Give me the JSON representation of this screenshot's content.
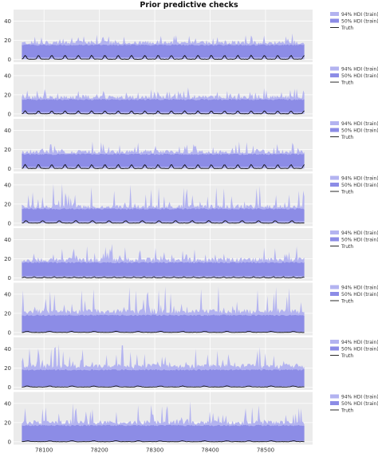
{
  "chart_data": {
    "type": "area",
    "title": "Prior predictive checks",
    "xlabel": "",
    "ylabel": "",
    "xlim": [
      78045,
      78585
    ],
    "x_range": [
      78060,
      78570
    ],
    "x_ticks": [
      78100,
      78200,
      78300,
      78400,
      78500
    ],
    "grid": true,
    "legend_placement": "right",
    "legend": [
      "94% HDI (train)",
      "50% HDI (train)",
      "Truth"
    ],
    "colors": {
      "hdi94": "#b3b3f0",
      "hdi50": "#8c8ce6",
      "truth": "#111111",
      "panel_bg": "#ebebeb",
      "grid": "#ffffff"
    },
    "panels": [
      {
        "ylim": [
          -3,
          52
        ],
        "y_ticks": [
          0,
          20,
          40
        ],
        "hdi94_base": 17,
        "hdi94_spike": 9,
        "hdi50_low": 2,
        "hdi50_high": 15,
        "truth_peak": 4,
        "truth_period": 24
      },
      {
        "ylim": [
          -3,
          52
        ],
        "y_ticks": [
          0,
          20,
          40
        ],
        "hdi94_base": 17,
        "hdi94_spike": 9,
        "hdi50_low": 2,
        "hdi50_high": 15,
        "truth_peak": 3,
        "truth_period": 24
      },
      {
        "ylim": [
          -3,
          52
        ],
        "y_ticks": [
          0,
          20,
          40
        ],
        "hdi94_base": 17,
        "hdi94_spike": 10,
        "hdi50_low": 2,
        "hdi50_high": 15,
        "truth_peak": 4,
        "truth_period": 24
      },
      {
        "ylim": [
          -3,
          52
        ],
        "y_ticks": [
          0,
          20,
          40
        ],
        "hdi94_base": 17,
        "hdi94_spike": 22,
        "hdi50_low": 2,
        "hdi50_high": 15,
        "truth_peak": 2.5,
        "truth_period": 30
      },
      {
        "ylim": [
          -3,
          52
        ],
        "y_ticks": [
          0,
          20,
          40
        ],
        "hdi94_base": 19,
        "hdi94_spike": 14,
        "hdi50_low": 2,
        "hdi50_high": 16,
        "truth_peak": 1,
        "truth_period": 18
      },
      {
        "ylim": [
          -3,
          52
        ],
        "y_ticks": [
          0,
          20,
          40
        ],
        "hdi94_base": 22,
        "hdi94_spike": 24,
        "hdi50_low": 1,
        "hdi50_high": 18,
        "truth_peak": 1,
        "truth_period": 40
      },
      {
        "ylim": [
          -3,
          52
        ],
        "y_ticks": [
          0,
          20,
          40
        ],
        "hdi94_base": 22,
        "hdi94_spike": 22,
        "hdi50_low": 1,
        "hdi50_high": 18,
        "truth_peak": 1,
        "truth_period": 40
      },
      {
        "ylim": [
          -3,
          52
        ],
        "y_ticks": [
          0,
          20,
          40
        ],
        "hdi94_base": 20,
        "hdi94_spike": 22,
        "hdi50_low": 1,
        "hdi50_high": 17,
        "truth_peak": 0.8,
        "truth_period": 40
      }
    ]
  }
}
